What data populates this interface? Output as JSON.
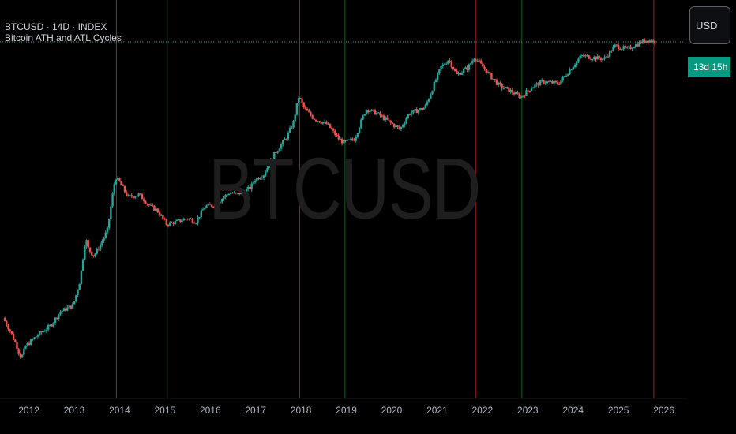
{
  "header": {
    "symbol_title": "BTCUSD · 14D · INDEX",
    "indicator_name": "Bitcoin ATH and ATL Cycles"
  },
  "watermark": "BTCUSD",
  "scale": {
    "currency_label": "USD",
    "countdown_label": "13d 15h"
  },
  "colors": {
    "background": "#000000",
    "up": "#26a69a",
    "down": "#ef5350",
    "ath_line": "#b71c1c",
    "atl_line": "#1b5e20",
    "price_line": "#26a69a",
    "countdown_bg": "#089981"
  },
  "chart_data": {
    "type": "candlestick",
    "title": "BTCUSD · 14D · INDEX",
    "indicator": "Bitcoin ATH and ATL Cycles",
    "x_axis": {
      "type": "time",
      "range": [
        2011.45,
        2026.6
      ],
      "tick_labels": [
        "2012",
        "2013",
        "2014",
        "2015",
        "2016",
        "2017",
        "2018",
        "2019",
        "2020",
        "2021",
        "2022",
        "2023",
        "2024",
        "2025",
        "2026"
      ]
    },
    "y_axis": {
      "scale": "log",
      "range": [
        1.5,
        200000
      ],
      "labels_visible": false
    },
    "grid": false,
    "price_series": [
      [
        2011.45,
        9
      ],
      [
        2011.6,
        6
      ],
      [
        2011.75,
        3.5
      ],
      [
        2011.85,
        2.3
      ],
      [
        2011.95,
        3.5
      ],
      [
        2012.2,
        5
      ],
      [
        2012.5,
        7
      ],
      [
        2012.7,
        11
      ],
      [
        2012.9,
        13
      ],
      [
        2013.0,
        14
      ],
      [
        2013.15,
        33
      ],
      [
        2013.27,
        140
      ],
      [
        2013.33,
        95
      ],
      [
        2013.45,
        75
      ],
      [
        2013.6,
        110
      ],
      [
        2013.75,
        180
      ],
      [
        2013.88,
        700
      ],
      [
        2013.93,
        1100
      ],
      [
        2014.05,
        850
      ],
      [
        2014.2,
        550
      ],
      [
        2014.45,
        600
      ],
      [
        2014.7,
        400
      ],
      [
        2014.85,
        350
      ],
      [
        2015.05,
        220
      ],
      [
        2015.3,
        240
      ],
      [
        2015.5,
        270
      ],
      [
        2015.7,
        240
      ],
      [
        2015.9,
        400
      ],
      [
        2016.1,
        420
      ],
      [
        2016.45,
        650
      ],
      [
        2016.6,
        600
      ],
      [
        2016.9,
        750
      ],
      [
        2017.0,
        1000
      ],
      [
        2017.2,
        1200
      ],
      [
        2017.45,
        2500
      ],
      [
        2017.7,
        4200
      ],
      [
        2017.85,
        7000
      ],
      [
        2017.97,
        17000
      ],
      [
        2018.1,
        11000
      ],
      [
        2018.3,
        8000
      ],
      [
        2018.6,
        6500
      ],
      [
        2018.85,
        4000
      ],
      [
        2018.97,
        3500
      ],
      [
        2019.2,
        4000
      ],
      [
        2019.45,
        11000
      ],
      [
        2019.7,
        9500
      ],
      [
        2019.95,
        7200
      ],
      [
        2020.2,
        5500
      ],
      [
        2020.4,
        9500
      ],
      [
        2020.75,
        11500
      ],
      [
        2020.95,
        25000
      ],
      [
        2021.1,
        45000
      ],
      [
        2021.28,
        60000
      ],
      [
        2021.45,
        35000
      ],
      [
        2021.7,
        45000
      ],
      [
        2021.85,
        65000
      ],
      [
        2022.1,
        40000
      ],
      [
        2022.4,
        24000
      ],
      [
        2022.6,
        21000
      ],
      [
        2022.87,
        16500
      ],
      [
        2023.1,
        23000
      ],
      [
        2023.35,
        28000
      ],
      [
        2023.7,
        26000
      ],
      [
        2023.95,
        42000
      ],
      [
        2024.2,
        67000
      ],
      [
        2024.5,
        63000
      ],
      [
        2024.7,
        60000
      ],
      [
        2024.95,
        95000
      ],
      [
        2025.2,
        84000
      ],
      [
        2025.5,
        105000
      ],
      [
        2025.65,
        115000
      ],
      [
        2025.78,
        110000
      ],
      [
        2025.8,
        108000
      ]
    ],
    "cycle_lines": {
      "ath": [
        2013.93,
        2017.97,
        2021.85,
        2025.78
      ],
      "atl": [
        2015.05,
        2018.97,
        2022.87
      ]
    }
  }
}
